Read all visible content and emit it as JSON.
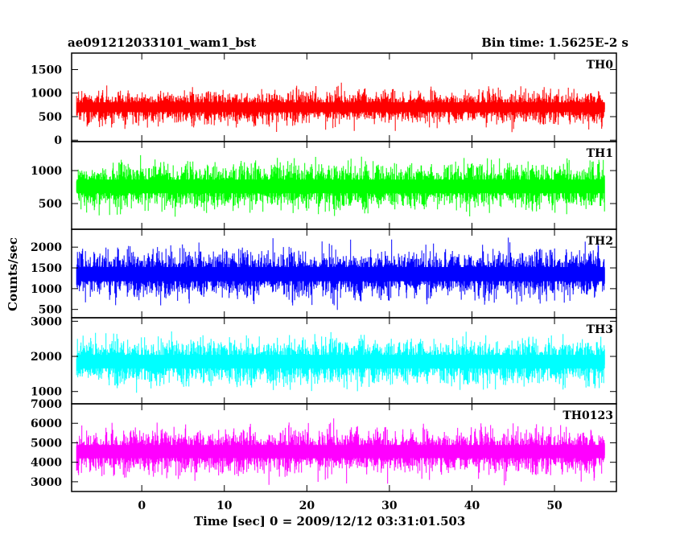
{
  "chart_data": {
    "type": "line",
    "title": "ae091212033101_wam1_bst",
    "subtitle": "Bin time: 1.5625E-2 s",
    "xlabel": "Time [sec] 0 = 2009/12/12 03:31:01.503",
    "ylabel": "Counts/sec",
    "xlim": [
      -8.5,
      57.5
    ],
    "x_range_data": [
      -7.9,
      56.1
    ],
    "x_ticks": [
      0,
      10,
      20,
      30,
      40,
      50
    ],
    "grid": false,
    "legend": "none",
    "panels": [
      {
        "name": "TH0",
        "color": "#ff0000",
        "ylim": [
          -30,
          1850
        ],
        "y_ticks": [
          0,
          500,
          1000,
          1500
        ],
        "mean": 700,
        "noise": 230,
        "floor": 170
      },
      {
        "name": "TH1",
        "color": "#00ff00",
        "ylim": [
          110,
          1440
        ],
        "y_ticks": [
          500,
          1000
        ],
        "mean": 760,
        "noise": 230,
        "floor": 150
      },
      {
        "name": "TH2",
        "color": "#0000ff",
        "ylim": [
          300,
          2430
        ],
        "y_ticks": [
          500,
          1000,
          1500,
          2000
        ],
        "mean": 1350,
        "noise": 380,
        "floor": 330
      },
      {
        "name": "TH3",
        "color": "#00ffff",
        "ylim": [
          650,
          3100
        ],
        "y_ticks": [
          1000,
          2000,
          3000
        ],
        "mean": 1850,
        "noise": 430,
        "floor": 680
      },
      {
        "name": "TH0123",
        "color": "#ff00ff",
        "ylim": [
          2500,
          7000
        ],
        "y_ticks": [
          3000,
          4000,
          5000,
          6000,
          7000
        ],
        "mean": 4550,
        "noise": 750,
        "floor": 2550
      }
    ]
  }
}
